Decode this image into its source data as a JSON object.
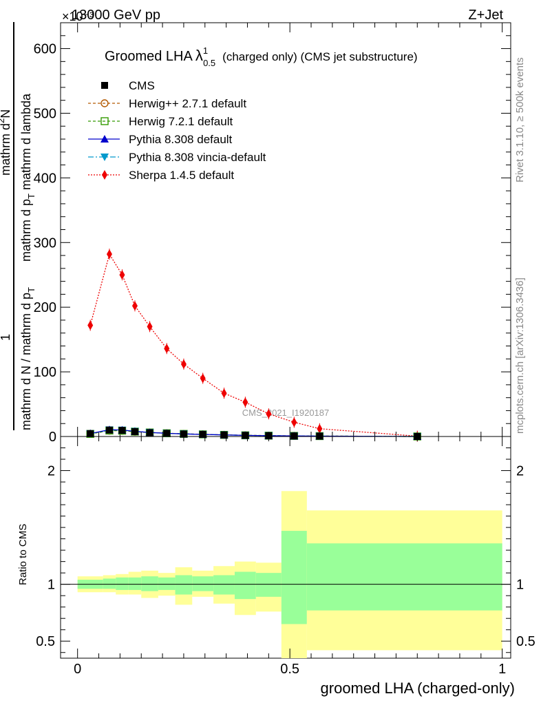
{
  "header": {
    "energy_label": "13000 GeV pp",
    "process_label": "Z+Jet",
    "exponent_label": "×10⁻³",
    "rivet_label": "Rivet 3.1.10, ≥ 500k events",
    "mcplots_label": "mcplots.cern.ch [arXiv:1306.3436]",
    "analysis_tag": "CMS_2021_I1920187"
  },
  "colors": {
    "cms": "#000000",
    "herwigpp": "#b35900",
    "herwig7": "#339900",
    "pythia": "#0000cc",
    "vincia": "#0099cc",
    "sherpa": "#ee0000",
    "band_outer": "#ffff99",
    "band_inner": "#99ff99"
  },
  "chart_data": [
    {
      "type": "line",
      "title": "Groomed LHA λ¹₀.₅ (charged only) (CMS jet substructure)",
      "title_parts": {
        "main": "Groomed LHA",
        "lambda": "λ",
        "sup": "1",
        "sub": "0.5",
        "rest": "(charged only) (CMS jet substructure)"
      },
      "ylabel_parts": {
        "one": "1",
        "denominator": "mathrm d N / mathrm d p_T",
        "numerator_line1": "mathrm d²N",
        "numerator_line2": "mathrm d p_T mathrm d lambda",
        "line_a": "mathrm d N / mathrm d p",
        "line_a_sub": "T",
        "line_b": "mathrm d p",
        "line_b_sub": "T",
        "line_c": "mathrm d lambda",
        "line_d": "mathrm d",
        "line_d_sup": "2",
        "line_d_end": "N"
      },
      "ylim": [
        0,
        640
      ],
      "y_scale_note": "×10⁻³",
      "yticks": [
        0,
        100,
        200,
        300,
        400,
        500,
        600
      ],
      "ytick_labels": [
        "0",
        "100",
        "200",
        "300",
        "400",
        "500",
        "600"
      ],
      "xlim": [
        -0.04,
        1.02
      ],
      "legend": [
        {
          "key": "cms",
          "label": "CMS",
          "marker": "square"
        },
        {
          "key": "herwigpp",
          "label": "Herwig++ 2.7.1 default",
          "marker": "open-circle"
        },
        {
          "key": "herwig7",
          "label": "Herwig 7.2.1 default",
          "marker": "open-square"
        },
        {
          "key": "pythia",
          "label": "Pythia 8.308 default",
          "marker": "triangle-up"
        },
        {
          "key": "vincia",
          "label": "Pythia 8.308 vincia-default",
          "marker": "triangle-down"
        },
        {
          "key": "sherpa",
          "label": "Sherpa 1.4.5 default",
          "marker": "diamond"
        }
      ],
      "series": [
        {
          "key": "sherpa",
          "name": "Sherpa 1.4.5 default",
          "x": [
            0.03,
            0.075,
            0.105,
            0.135,
            0.17,
            0.21,
            0.25,
            0.295,
            0.345,
            0.395,
            0.45,
            0.51,
            0.57,
            0.8
          ],
          "y": [
            172,
            282,
            250,
            202,
            170,
            136,
            112,
            90,
            67,
            53,
            35,
            22,
            12,
            0.5
          ]
        },
        {
          "key": "cms",
          "name": "CMS",
          "x": [
            0.03,
            0.075,
            0.105,
            0.135,
            0.17,
            0.21,
            0.25,
            0.295,
            0.345,
            0.395,
            0.45,
            0.51,
            0.57,
            0.8
          ],
          "y": [
            4.5,
            10.0,
            9.5,
            7.5,
            6.0,
            4.8,
            3.9,
            3.3,
            2.5,
            1.8,
            1.3,
            0.9,
            0.6,
            0.05
          ]
        },
        {
          "key": "herwigpp",
          "name": "Herwig++ 2.7.1 default",
          "x": [
            0.03,
            0.075,
            0.105,
            0.135,
            0.17,
            0.21,
            0.25,
            0.295,
            0.345,
            0.395,
            0.45,
            0.51,
            0.57,
            0.8
          ],
          "y": [
            4.2,
            9.0,
            8.8,
            7.4,
            6.1,
            5.0,
            4.1,
            3.4,
            2.6,
            1.9,
            1.4,
            1.0,
            0.7,
            0.05
          ]
        },
        {
          "key": "herwig7",
          "name": "Herwig 7.2.1 default",
          "x": [
            0.03,
            0.075,
            0.105,
            0.135,
            0.17,
            0.21,
            0.25,
            0.295,
            0.345,
            0.395,
            0.45,
            0.51,
            0.57,
            0.8
          ],
          "y": [
            4.0,
            9.2,
            9.0,
            7.6,
            6.2,
            5.0,
            4.0,
            3.3,
            2.5,
            1.8,
            1.3,
            0.9,
            0.6,
            0.05
          ]
        },
        {
          "key": "pythia",
          "name": "Pythia 8.308 default",
          "x": [
            0.03,
            0.075,
            0.105,
            0.135,
            0.17,
            0.21,
            0.25,
            0.295,
            0.345,
            0.395,
            0.45,
            0.51,
            0.57,
            0.8
          ],
          "y": [
            4.6,
            10.5,
            10.0,
            8.0,
            6.3,
            4.9,
            3.9,
            3.2,
            2.4,
            1.7,
            1.2,
            0.8,
            0.5,
            0.05
          ]
        },
        {
          "key": "vincia",
          "name": "Pythia 8.308 vincia-default",
          "x": [
            0.03,
            0.075,
            0.105,
            0.135,
            0.17,
            0.21,
            0.25,
            0.295,
            0.345,
            0.395,
            0.45,
            0.51,
            0.57,
            0.8
          ],
          "y": [
            4.4,
            10.2,
            9.8,
            7.9,
            6.2,
            4.9,
            4.0,
            3.3,
            2.5,
            1.8,
            1.3,
            0.9,
            0.6,
            0.05
          ]
        }
      ]
    },
    {
      "type": "area",
      "title": "Ratio to CMS",
      "ylabel": "Ratio to CMS",
      "xlabel": "groomed LHA (charged-only)",
      "xlim": [
        -0.04,
        1.02
      ],
      "xticks": [
        0,
        0.5,
        1
      ],
      "xtick_labels": [
        "0",
        "0.5",
        "1"
      ],
      "ylim": [
        0.35,
        2.3
      ],
      "yticks": [
        0.5,
        1,
        2
      ],
      "ytick_labels": [
        "0.5",
        "1",
        "2"
      ],
      "reference_line": 1,
      "bins": [
        {
          "x0": 0.0,
          "x1": 0.06,
          "outer": [
            0.93,
            1.07
          ],
          "inner": [
            0.96,
            1.04
          ]
        },
        {
          "x0": 0.06,
          "x1": 0.09,
          "outer": [
            0.93,
            1.08
          ],
          "inner": [
            0.96,
            1.05
          ]
        },
        {
          "x0": 0.09,
          "x1": 0.12,
          "outer": [
            0.91,
            1.09
          ],
          "inner": [
            0.95,
            1.06
          ]
        },
        {
          "x0": 0.12,
          "x1": 0.15,
          "outer": [
            0.91,
            1.11
          ],
          "inner": [
            0.95,
            1.06
          ]
        },
        {
          "x0": 0.15,
          "x1": 0.19,
          "outer": [
            0.88,
            1.12
          ],
          "inner": [
            0.94,
            1.07
          ]
        },
        {
          "x0": 0.19,
          "x1": 0.23,
          "outer": [
            0.9,
            1.1
          ],
          "inner": [
            0.95,
            1.06
          ]
        },
        {
          "x0": 0.23,
          "x1": 0.27,
          "outer": [
            0.82,
            1.15
          ],
          "inner": [
            0.91,
            1.08
          ]
        },
        {
          "x0": 0.27,
          "x1": 0.32,
          "outer": [
            0.89,
            1.12
          ],
          "inner": [
            0.94,
            1.07
          ]
        },
        {
          "x0": 0.32,
          "x1": 0.37,
          "outer": [
            0.83,
            1.16
          ],
          "inner": [
            0.91,
            1.08
          ]
        },
        {
          "x0": 0.37,
          "x1": 0.42,
          "outer": [
            0.73,
            1.2
          ],
          "inner": [
            0.87,
            1.11
          ]
        },
        {
          "x0": 0.42,
          "x1": 0.48,
          "outer": [
            0.76,
            1.19
          ],
          "inner": [
            0.89,
            1.1
          ]
        },
        {
          "x0": 0.48,
          "x1": 0.54,
          "outer": [
            0.3,
            1.82
          ],
          "inner": [
            0.65,
            1.47
          ]
        },
        {
          "x0": 0.54,
          "x1": 1.0,
          "outer": [
            0.42,
            1.65
          ],
          "inner": [
            0.77,
            1.36
          ]
        }
      ]
    }
  ]
}
